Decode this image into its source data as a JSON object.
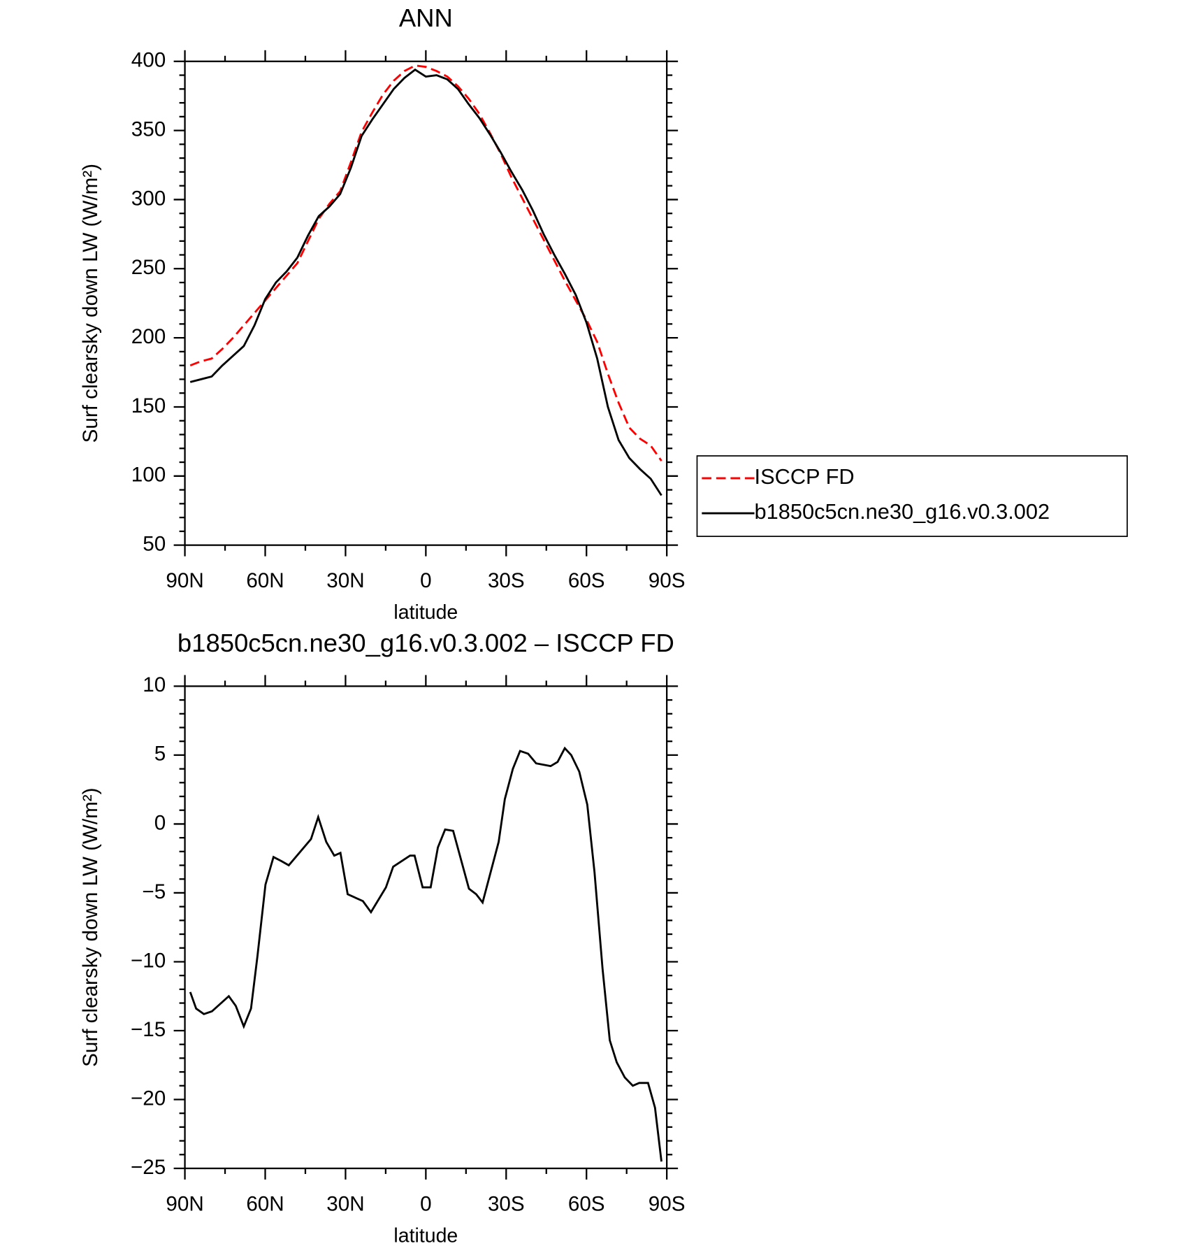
{
  "chart_data": [
    {
      "type": "line",
      "title": "ANN",
      "x_label": "latitude",
      "y_label": "Surf clearsky down LW (W/m²)",
      "xlim": [
        90,
        -90
      ],
      "xticks": [
        {
          "value": 90,
          "label": "90N"
        },
        {
          "value": 60,
          "label": "60N"
        },
        {
          "value": 30,
          "label": "30N"
        },
        0,
        {
          "value": -30,
          "label": "30S"
        },
        {
          "value": -60,
          "label": "60S"
        },
        {
          "value": -90,
          "label": "90S"
        }
      ],
      "ylim": [
        50,
        400
      ],
      "yticks": [
        50,
        100,
        150,
        200,
        250,
        300,
        350,
        400
      ],
      "legend": "right",
      "x": [
        88,
        84,
        80,
        76,
        72,
        68,
        64,
        60,
        56,
        52,
        48,
        44,
        40,
        36,
        32,
        28,
        24,
        20,
        16,
        12,
        8,
        4,
        0,
        -4,
        -8,
        -12,
        -16,
        -20,
        -24,
        -28,
        -32,
        -36,
        -40,
        -44,
        -48,
        -52,
        -56,
        -60,
        -64,
        -68,
        -72,
        -76,
        -80,
        -84,
        -88
      ],
      "series": [
        {
          "name": "ISCCP FD",
          "color": "#ff0000",
          "dash": true,
          "values": [
            180,
            183,
            185,
            192,
            200,
            209,
            218,
            227,
            236,
            245,
            254,
            270,
            286,
            297,
            306,
            327,
            349,
            363,
            376,
            386,
            393,
            397,
            396,
            393,
            389,
            382,
            373,
            362,
            348,
            333,
            316,
            301,
            286,
            271,
            256,
            241,
            227,
            213,
            197,
            174,
            153,
            135,
            127,
            122,
            111
          ]
        },
        {
          "name": "b1850c5cn.ne30_g16.v0.3.002",
          "color": "#000000",
          "dash": false,
          "values": [
            168,
            170,
            172,
            180,
            187,
            194,
            209,
            228,
            240,
            248,
            258,
            274,
            288,
            295,
            304,
            323,
            346,
            358,
            369,
            380,
            388,
            394,
            389,
            390,
            387,
            380,
            369,
            359,
            347,
            334,
            320,
            307,
            292,
            275,
            260,
            246,
            231,
            211,
            185,
            150,
            126,
            113,
            105,
            98,
            86
          ]
        }
      ]
    },
    {
      "type": "line",
      "title": "b1850c5cn.ne30_g16.v0.3.002 – ISCCP FD",
      "x_label": "latitude",
      "y_label": "Surf clearsky down LW (W/m²)",
      "xlim": [
        90,
        -90
      ],
      "xticks": [
        {
          "value": 90,
          "label": "90N"
        },
        {
          "value": 60,
          "label": "60N"
        },
        {
          "value": 30,
          "label": "30N"
        },
        0,
        {
          "value": -30,
          "label": "30S"
        },
        {
          "value": -60,
          "label": "60S"
        },
        {
          "value": -90,
          "label": "90S"
        }
      ],
      "ylim": [
        -25,
        10
      ],
      "yticks": [
        {
          "value": -25,
          "label": "−25"
        },
        {
          "value": -20,
          "label": "−20"
        },
        {
          "value": -15,
          "label": "−15"
        },
        {
          "value": -10,
          "label": "−10"
        },
        {
          "value": -5,
          "label": "−5"
        },
        0,
        5,
        10
      ],
      "x": [
        88,
        85.8,
        82.9,
        79.9,
        73.6,
        71,
        68,
        65.3,
        62.9,
        59.9,
        56.9,
        53.9,
        51.2,
        42.9,
        40.2,
        37.2,
        34.2,
        31.9,
        29.2,
        23.5,
        20.5,
        14.9,
        12.2,
        5.9,
        4.2,
        1.2,
        -1.8,
        -4.5,
        -7.2,
        -10.2,
        -16.1,
        -18.8,
        -21.2,
        -27.2,
        -29.5,
        -32.5,
        -35.2,
        -38.2,
        -41.2,
        -46.6,
        -49.2,
        -51.9,
        -54.3,
        -57.3,
        -60.3,
        -63,
        -66,
        -68.7,
        -71.3,
        -74.3,
        -77.3,
        -79.7,
        -83,
        -85.6,
        -88
      ],
      "series": [
        {
          "color": "#000000",
          "dash": false,
          "values": [
            -12.2,
            -13.4,
            -13.8,
            -13.6,
            -12.5,
            -13.2,
            -14.7,
            -13.4,
            -9.6,
            -4.4,
            -2.4,
            -2.7,
            -3,
            -1.1,
            0.5,
            -1.3,
            -2.3,
            -2.1,
            -5.1,
            -5.6,
            -6.4,
            -4.6,
            -3.1,
            -2.3,
            -2.3,
            -4.6,
            -4.6,
            -1.7,
            -0.4,
            -0.5,
            -4.7,
            -5.1,
            -5.7,
            -1.3,
            1.8,
            4,
            5.3,
            5.1,
            4.4,
            4.2,
            4.5,
            5.5,
            5,
            3.8,
            1.4,
            -3.5,
            -10.5,
            -15.7,
            -17.3,
            -18.4,
            -19,
            -18.8,
            -18.8,
            -20.6,
            -24.5
          ]
        }
      ]
    }
  ]
}
